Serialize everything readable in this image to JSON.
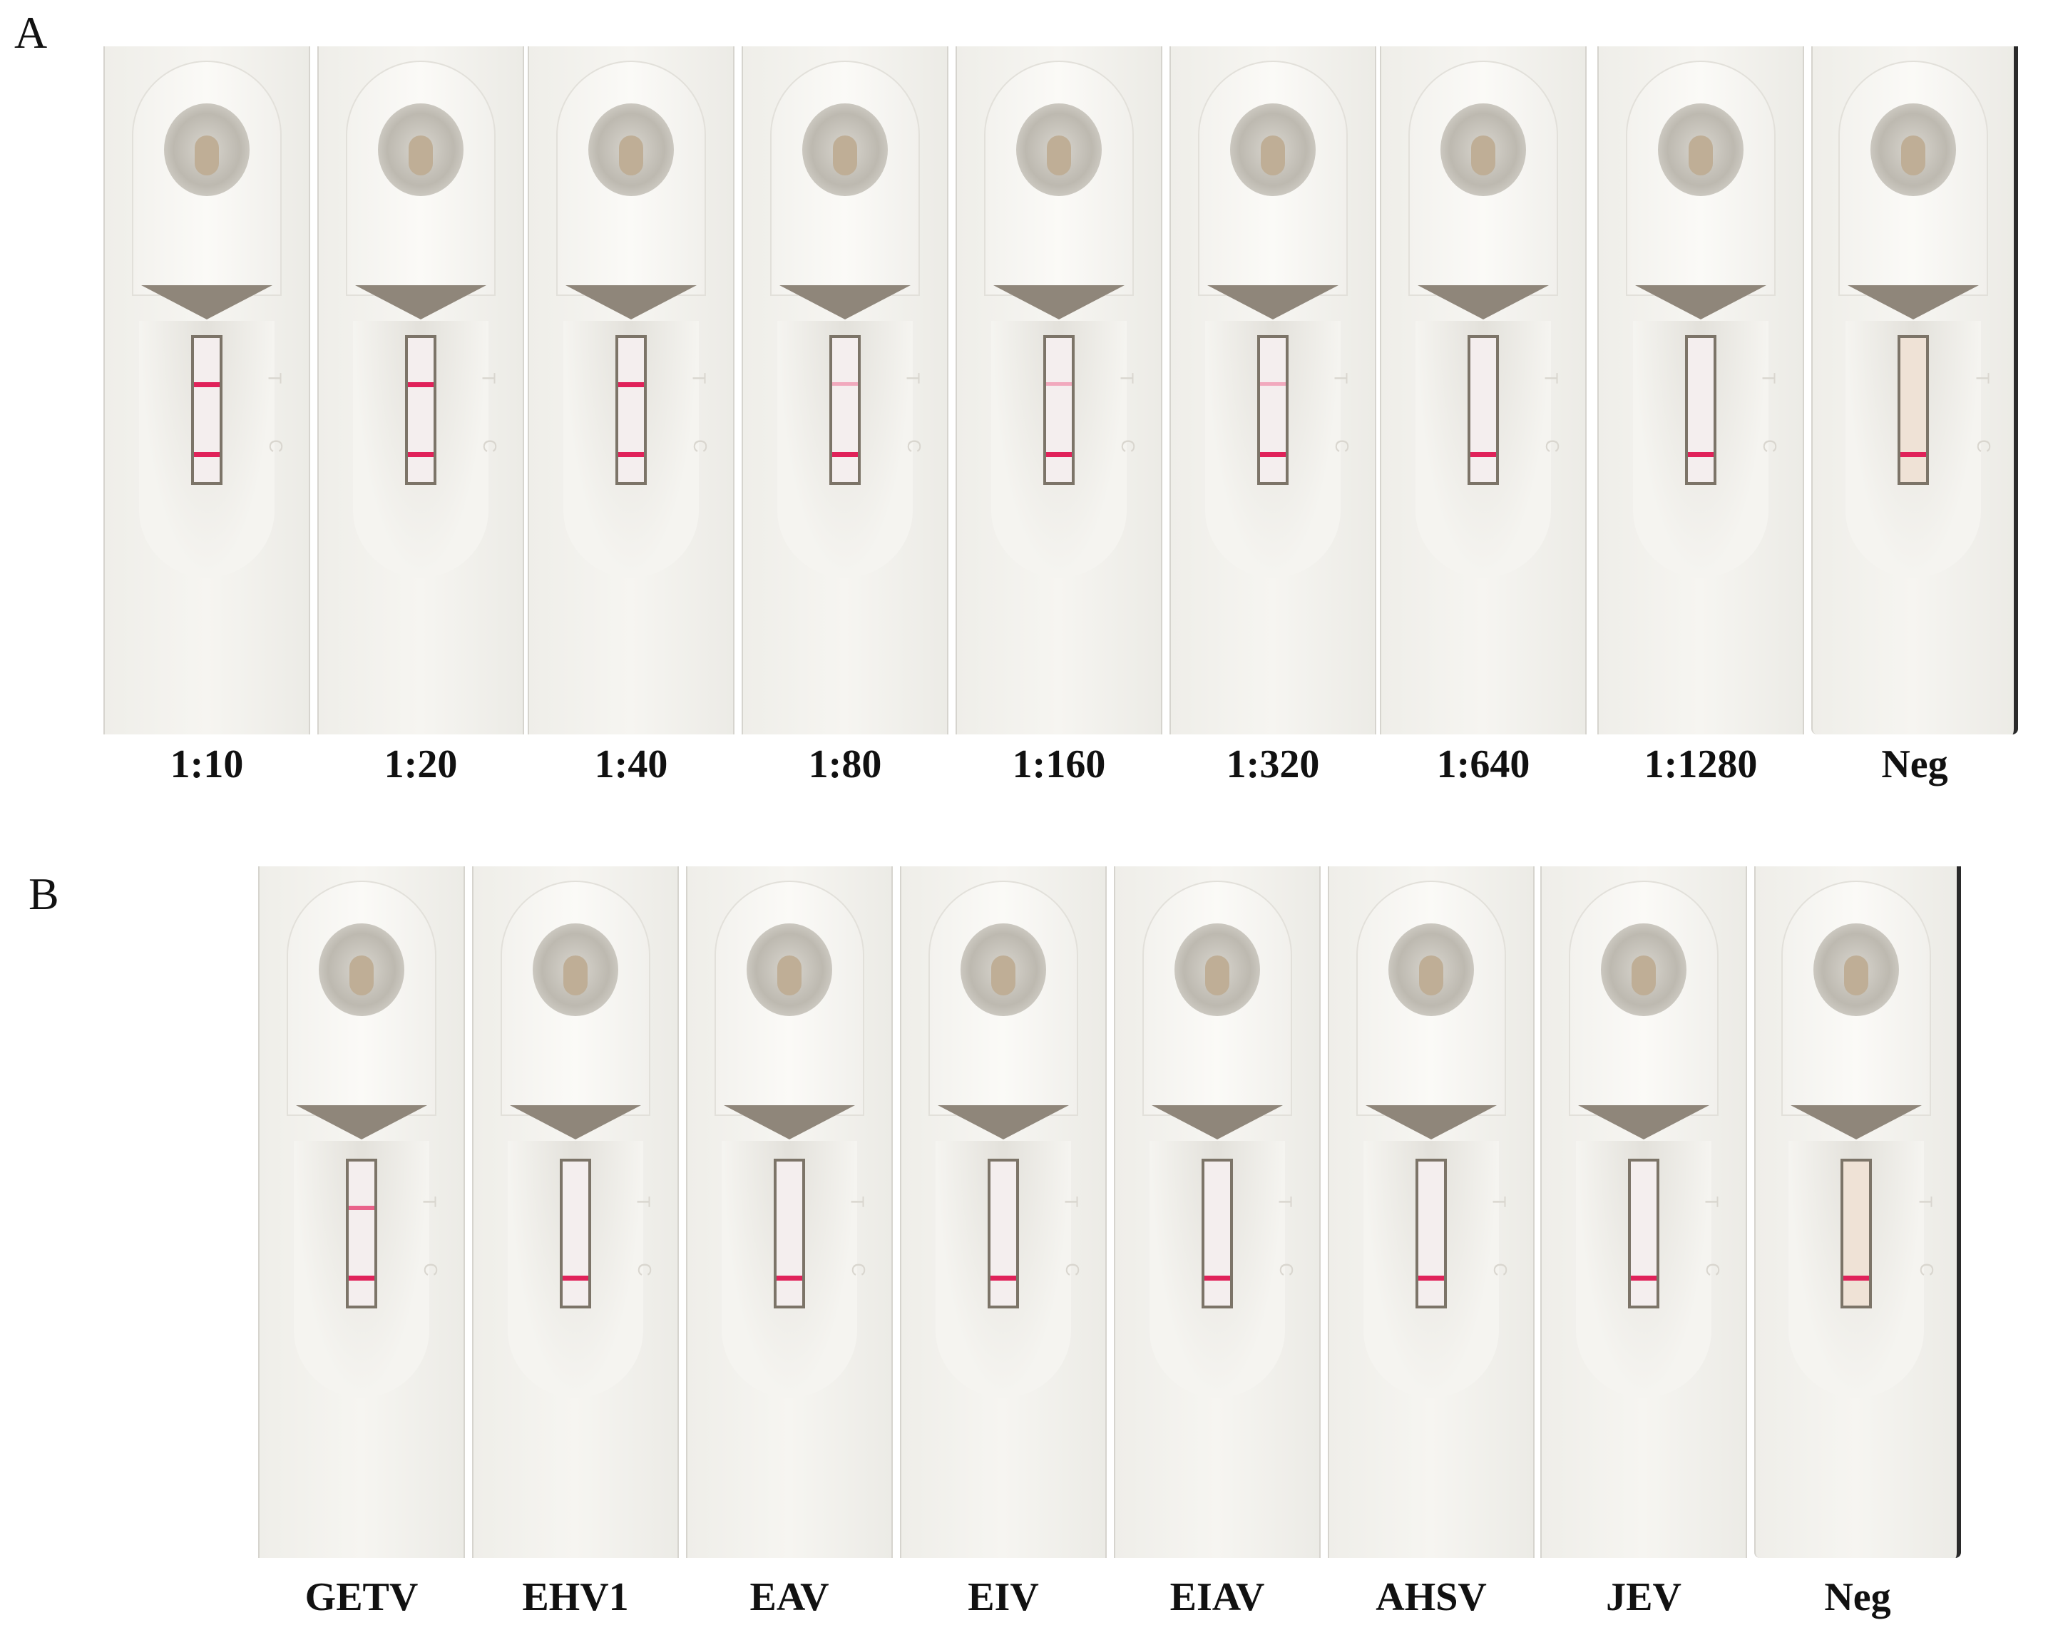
{
  "panel_a": {
    "letter": "A",
    "strips": [
      {
        "label": "1:10",
        "test_line": "strong",
        "control_line": "strong"
      },
      {
        "label": "1:20",
        "test_line": "strong",
        "control_line": "strong"
      },
      {
        "label": "1:40",
        "test_line": "strong",
        "control_line": "strong"
      },
      {
        "label": "1:80",
        "test_line": "faint",
        "control_line": "strong"
      },
      {
        "label": "1:160",
        "test_line": "faint",
        "control_line": "strong"
      },
      {
        "label": "1:320",
        "test_line": "faint",
        "control_line": "strong"
      },
      {
        "label": "1:640",
        "test_line": "none",
        "control_line": "strong"
      },
      {
        "label": "1:1280",
        "test_line": "none",
        "control_line": "strong"
      },
      {
        "label": "Neg",
        "test_line": "none",
        "control_line": "strong"
      }
    ]
  },
  "panel_b": {
    "letter": "B",
    "strips": [
      {
        "label": "GETV",
        "test_line": "medium",
        "control_line": "strong"
      },
      {
        "label": "EHV1",
        "test_line": "none",
        "control_line": "strong"
      },
      {
        "label": "EAV",
        "test_line": "none",
        "control_line": "strong"
      },
      {
        "label": "EIV",
        "test_line": "none",
        "control_line": "strong"
      },
      {
        "label": "EIAV",
        "test_line": "none",
        "control_line": "strong"
      },
      {
        "label": "AHSV",
        "test_line": "none",
        "control_line": "strong"
      },
      {
        "label": "JEV",
        "test_line": "none",
        "control_line": "strong"
      },
      {
        "label": "Neg",
        "test_line": "none",
        "control_line": "strong"
      }
    ]
  },
  "cassette_marks": {
    "t": "T",
    "c": "C"
  },
  "colors": {
    "line": "#e0225a",
    "faint_line": "#f1a9bd",
    "cassette": "#f6f5f1",
    "pad": "#bfae96"
  }
}
